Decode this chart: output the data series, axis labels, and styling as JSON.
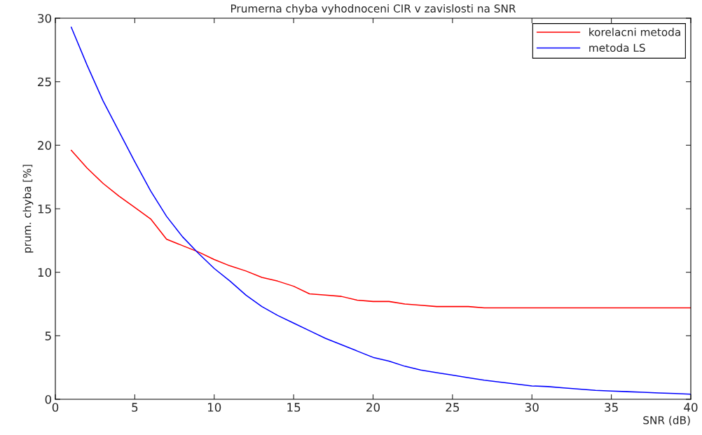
{
  "chart_data": {
    "type": "line",
    "title": "Prumerna chyba vyhodnoceni CIR v zavislosti na SNR",
    "xlabel": "SNR (dB)",
    "ylabel": "prum. chyba [%]",
    "x": [
      1,
      2,
      3,
      4,
      5,
      6,
      7,
      8,
      9,
      10,
      11,
      12,
      13,
      14,
      15,
      16,
      17,
      18,
      19,
      20,
      21,
      22,
      23,
      24,
      25,
      26,
      27,
      28,
      29,
      30,
      31,
      32,
      33,
      34,
      35,
      36,
      37,
      38,
      39,
      40
    ],
    "series": [
      {
        "name": "korelacni metoda",
        "color": "#ff0000",
        "values": [
          19.6,
          18.2,
          17.0,
          16.0,
          15.1,
          14.2,
          12.6,
          12.1,
          11.6,
          11.0,
          10.5,
          10.1,
          9.6,
          9.3,
          8.9,
          8.3,
          8.2,
          8.1,
          7.8,
          7.7,
          7.7,
          7.5,
          7.4,
          7.3,
          7.3,
          7.3,
          7.2,
          7.2,
          7.2,
          7.2,
          7.2,
          7.2,
          7.2,
          7.2,
          7.2,
          7.2,
          7.2,
          7.2,
          7.2,
          7.2
        ]
      },
      {
        "name": "metoda LS",
        "color": "#0000ff",
        "values": [
          29.3,
          26.3,
          23.5,
          21.1,
          18.7,
          16.4,
          14.4,
          12.8,
          11.5,
          10.3,
          9.3,
          8.2,
          7.3,
          6.6,
          6.0,
          5.4,
          4.8,
          4.3,
          3.8,
          3.3,
          3.0,
          2.6,
          2.3,
          2.1,
          1.9,
          1.7,
          1.5,
          1.35,
          1.2,
          1.05,
          1.0,
          0.9,
          0.8,
          0.7,
          0.65,
          0.6,
          0.55,
          0.5,
          0.45,
          0.4
        ]
      }
    ],
    "xlim": [
      0,
      40
    ],
    "ylim": [
      0,
      30
    ],
    "xticks": [
      0,
      5,
      10,
      15,
      20,
      25,
      30,
      35,
      40
    ],
    "yticks": [
      0,
      5,
      10,
      15,
      20,
      25,
      30
    ],
    "grid": false,
    "legend": "top right",
    "marker": "none",
    "line_style": "solid"
  }
}
